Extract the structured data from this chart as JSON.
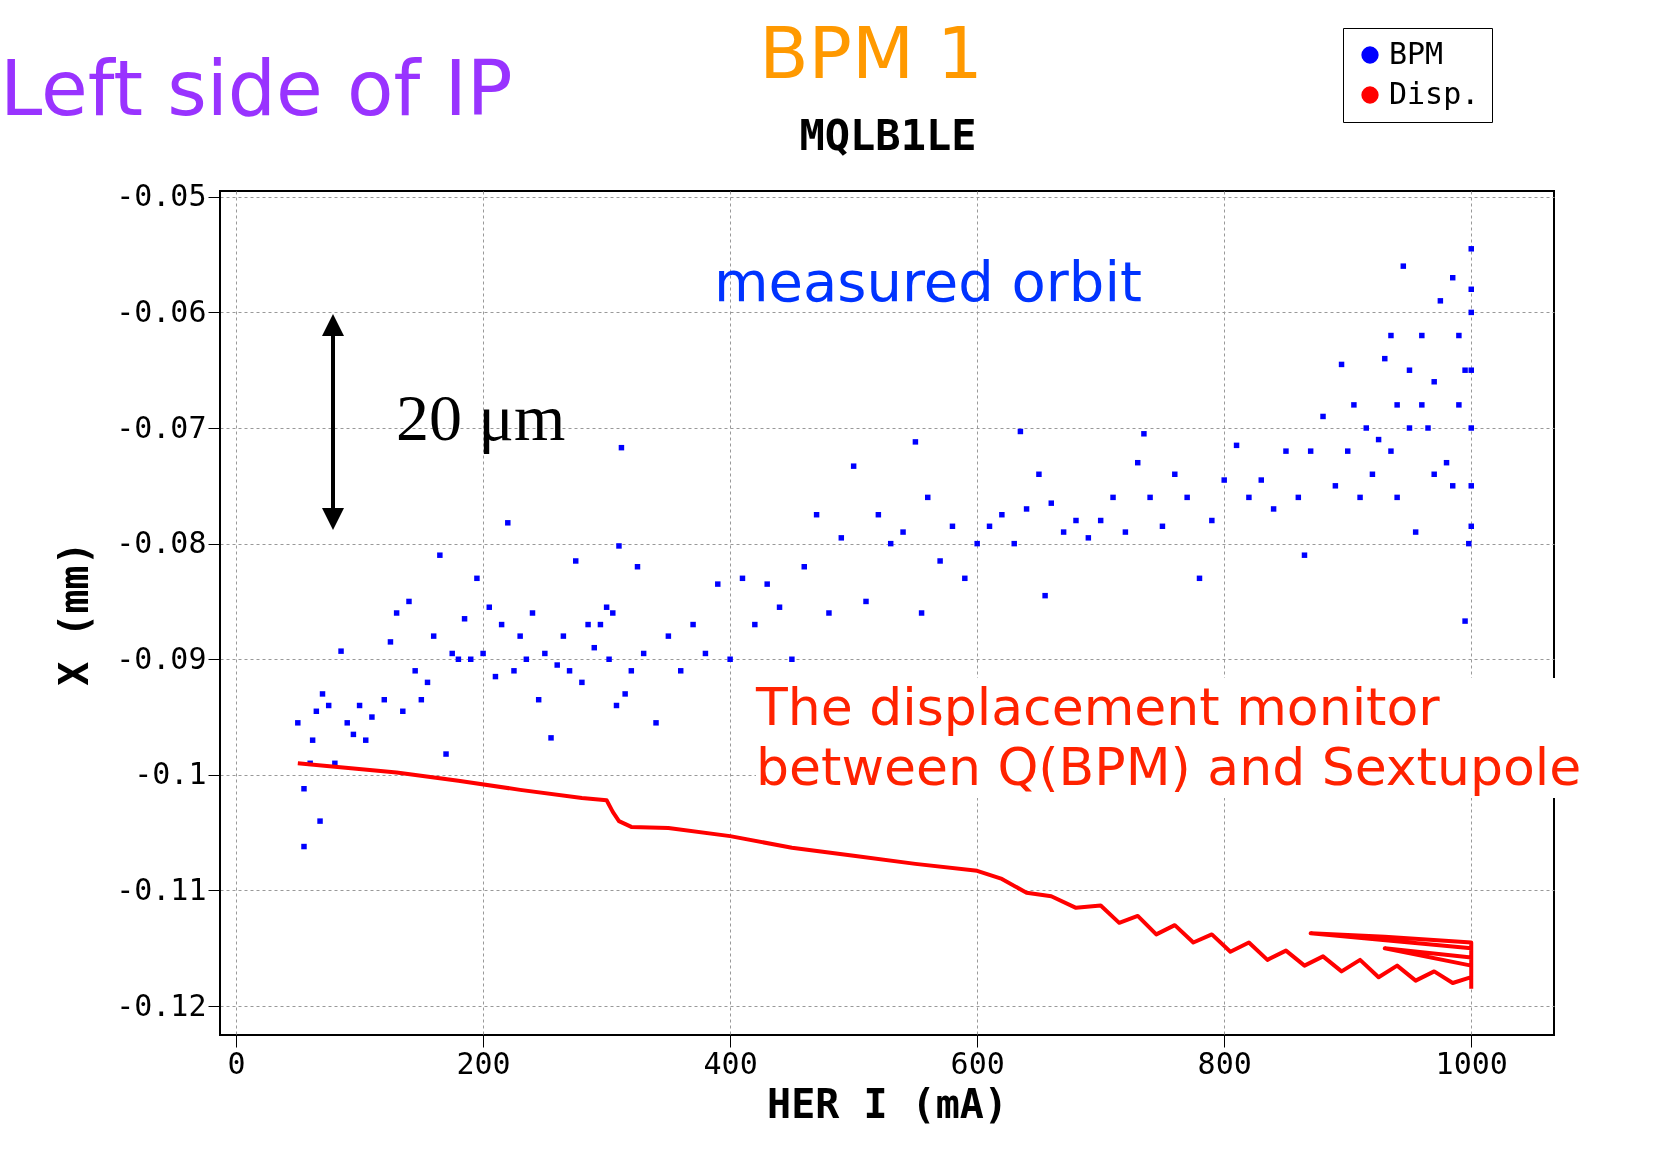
{
  "chart_data": {
    "type": "scatter",
    "title": "MQLB1LE",
    "xlabel": "HER I (mA)",
    "ylabel": "X (mm)",
    "annotations": [
      "Left side of IP",
      "BPM 1",
      "measured orbit",
      "The displacement monitor between Q(BPM) and Sextupole",
      "20 μm"
    ],
    "xlim": [
      -13,
      1067
    ],
    "ylim": [
      -0.1225,
      -0.0495
    ],
    "xticks": [
      0,
      200,
      400,
      600,
      800,
      1000
    ],
    "yticks": [
      -0.12,
      -0.11,
      -0.1,
      -0.09,
      -0.08,
      -0.07,
      -0.06,
      -0.05
    ],
    "grid": true,
    "legend": "top right",
    "series": [
      {
        "name": "BPM",
        "marker": "square",
        "color": "#0000ff",
        "x": [
          50,
          55,
          55,
          60,
          62,
          65,
          68,
          70,
          75,
          80,
          85,
          90,
          95,
          100,
          105,
          110,
          120,
          125,
          130,
          135,
          140,
          145,
          150,
          155,
          160,
          165,
          170,
          175,
          180,
          185,
          190,
          195,
          200,
          205,
          210,
          215,
          220,
          225,
          230,
          235,
          240,
          245,
          250,
          255,
          260,
          265,
          270,
          275,
          280,
          285,
          290,
          295,
          300,
          302,
          305,
          308,
          310,
          312,
          315,
          320,
          325,
          330,
          340,
          350,
          360,
          370,
          380,
          390,
          400,
          410,
          420,
          430,
          440,
          450,
          460,
          470,
          480,
          490,
          500,
          510,
          520,
          530,
          540,
          550,
          555,
          560,
          570,
          580,
          590,
          600,
          610,
          620,
          630,
          635,
          640,
          650,
          655,
          660,
          670,
          680,
          690,
          700,
          710,
          720,
          730,
          735,
          740,
          750,
          760,
          770,
          780,
          790,
          800,
          810,
          820,
          830,
          840,
          850,
          860,
          865,
          870,
          880,
          890,
          895,
          900,
          905,
          910,
          915,
          920,
          925,
          930,
          935,
          940,
          945,
          950,
          955,
          960,
          965,
          970,
          975,
          980,
          985,
          990,
          995,
          998,
          1000,
          1000,
          1000,
          1000,
          1000,
          1000,
          995,
          1000,
          990,
          985,
          970,
          960,
          950,
          940,
          935
        ],
        "values": [
          -0.0955,
          -0.1062,
          -0.1012,
          -0.099,
          -0.097,
          -0.0945,
          -0.104,
          -0.093,
          -0.094,
          -0.099,
          -0.0893,
          -0.0955,
          -0.0965,
          -0.094,
          -0.097,
          -0.095,
          -0.0935,
          -0.0885,
          -0.086,
          -0.0945,
          -0.085,
          -0.091,
          -0.0935,
          -0.092,
          -0.088,
          -0.081,
          -0.0982,
          -0.0895,
          -0.09,
          -0.0865,
          -0.09,
          -0.083,
          -0.0895,
          -0.0855,
          -0.0915,
          -0.087,
          -0.0782,
          -0.091,
          -0.088,
          -0.09,
          -0.086,
          -0.0935,
          -0.0895,
          -0.0968,
          -0.0905,
          -0.088,
          -0.091,
          -0.0815,
          -0.092,
          -0.087,
          -0.089,
          -0.087,
          -0.0855,
          -0.09,
          -0.086,
          -0.094,
          -0.0802,
          -0.0717,
          -0.093,
          -0.091,
          -0.082,
          -0.0895,
          -0.0955,
          -0.088,
          -0.091,
          -0.087,
          -0.0895,
          -0.0835,
          -0.09,
          -0.083,
          -0.087,
          -0.0835,
          -0.0855,
          -0.09,
          -0.082,
          -0.0775,
          -0.086,
          -0.0795,
          -0.0733,
          -0.085,
          -0.0775,
          -0.08,
          -0.079,
          -0.0712,
          -0.086,
          -0.076,
          -0.0815,
          -0.0785,
          -0.083,
          -0.08,
          -0.0785,
          -0.0775,
          -0.08,
          -0.0703,
          -0.077,
          -0.074,
          -0.0845,
          -0.0765,
          -0.079,
          -0.078,
          -0.0795,
          -0.078,
          -0.076,
          -0.079,
          -0.073,
          -0.0705,
          -0.076,
          -0.0785,
          -0.074,
          -0.076,
          -0.083,
          -0.078,
          -0.0745,
          -0.0715,
          -0.076,
          -0.0745,
          -0.077,
          -0.072,
          -0.076,
          -0.081,
          -0.072,
          -0.069,
          -0.075,
          -0.0645,
          -0.072,
          -0.068,
          -0.076,
          -0.07,
          -0.074,
          -0.071,
          -0.064,
          -0.072,
          -0.068,
          -0.056,
          -0.07,
          -0.079,
          -0.062,
          -0.07,
          -0.066,
          -0.059,
          -0.073,
          -0.057,
          -0.068,
          -0.065,
          -0.08,
          -0.0545,
          -0.06,
          -0.065,
          -0.07,
          -0.075,
          -0.0785,
          -0.0867,
          -0.058,
          -0.062,
          -0.075,
          -0.074,
          -0.068,
          -0.065,
          -0.076,
          -0.062
        ]
      },
      {
        "name": "Disp.",
        "type": "line",
        "color": "#ff0000",
        "x": [
          50,
          80,
          130,
          180,
          230,
          280,
          300,
          305,
          310,
          320,
          350,
          400,
          450,
          500,
          550,
          600,
          620,
          640,
          660,
          680,
          700,
          715,
          730,
          745,
          760,
          775,
          790,
          805,
          820,
          835,
          850,
          865,
          880,
          895,
          910,
          925,
          940,
          955,
          970,
          985,
          1000,
          1000,
          870,
          930,
          1000,
          1000,
          930,
          1000,
          1000
        ],
        "values": [
          -0.099,
          -0.0993,
          -0.0998,
          -0.1005,
          -0.1013,
          -0.102,
          -0.1022,
          -0.1032,
          -0.104,
          -0.1045,
          -0.1046,
          -0.1053,
          -0.1063,
          -0.107,
          -0.1077,
          -0.1083,
          -0.109,
          -0.1102,
          -0.1105,
          -0.1115,
          -0.1113,
          -0.1128,
          -0.1122,
          -0.1138,
          -0.113,
          -0.1145,
          -0.1138,
          -0.1153,
          -0.1145,
          -0.116,
          -0.1152,
          -0.1165,
          -0.1157,
          -0.117,
          -0.116,
          -0.1175,
          -0.1165,
          -0.1178,
          -0.117,
          -0.118,
          -0.1175,
          -0.115,
          -0.1137,
          -0.114,
          -0.1145,
          -0.1165,
          -0.115,
          -0.1158,
          -0.1185
        ]
      }
    ]
  }
}
